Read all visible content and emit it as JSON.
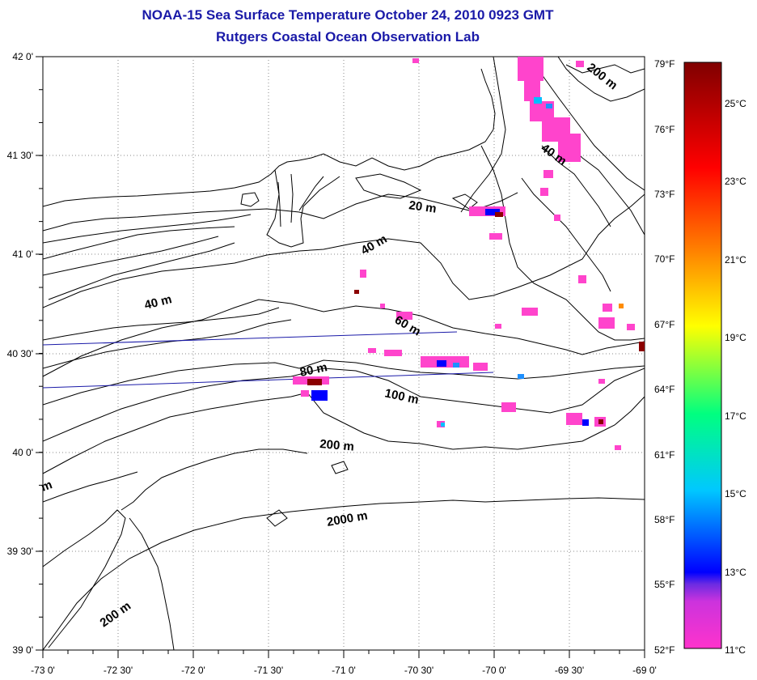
{
  "header": {
    "title": "NOAA-15 Sea Surface Temperature October 24, 2010 0923 GMT",
    "subtitle": "Rutgers Coastal Ocean Observation Lab"
  },
  "map": {
    "lon_labels": [
      "-73 0'",
      "-72 30'",
      "-72 0'",
      "-71 30'",
      "-71 0'",
      "-70 30'",
      "-70 0'",
      "-69 30'",
      "-69 0'"
    ],
    "lat_labels": [
      "42 0'",
      "41 30'",
      "41 0'",
      "40 30'",
      "40 0'",
      "39 30'",
      "39 0'"
    ],
    "lon_range": [
      -73,
      -69
    ],
    "lat_range": [
      39,
      42
    ],
    "grid": "dotted",
    "contour_labels": [
      "200 m",
      "40 m",
      "20 m",
      "40 m",
      "40 m",
      "60 m",
      "80 m",
      "100 m",
      "200 m",
      "2000 m",
      "200 m",
      "m"
    ]
  },
  "colorbar": {
    "fahrenheit_labels": [
      "79°F",
      "76°F",
      "73°F",
      "70°F",
      "67°F",
      "64°F",
      "61°F",
      "58°F",
      "55°F",
      "52°F"
    ],
    "celsius_labels": [
      "25°C",
      "23°C",
      "21°C",
      "19°C",
      "17°C",
      "15°C",
      "13°C",
      "11°C"
    ],
    "colors": [
      "#ff33cc",
      "#8a2be2",
      "#0000ff",
      "#00c8ff",
      "#00ff80",
      "#ffff00",
      "#ff8000",
      "#ff0000",
      "#800000"
    ]
  },
  "colors": {
    "title": "#1a1aa8",
    "transect": "#1a1aa8",
    "cold_pixel": "#ff44cc"
  }
}
